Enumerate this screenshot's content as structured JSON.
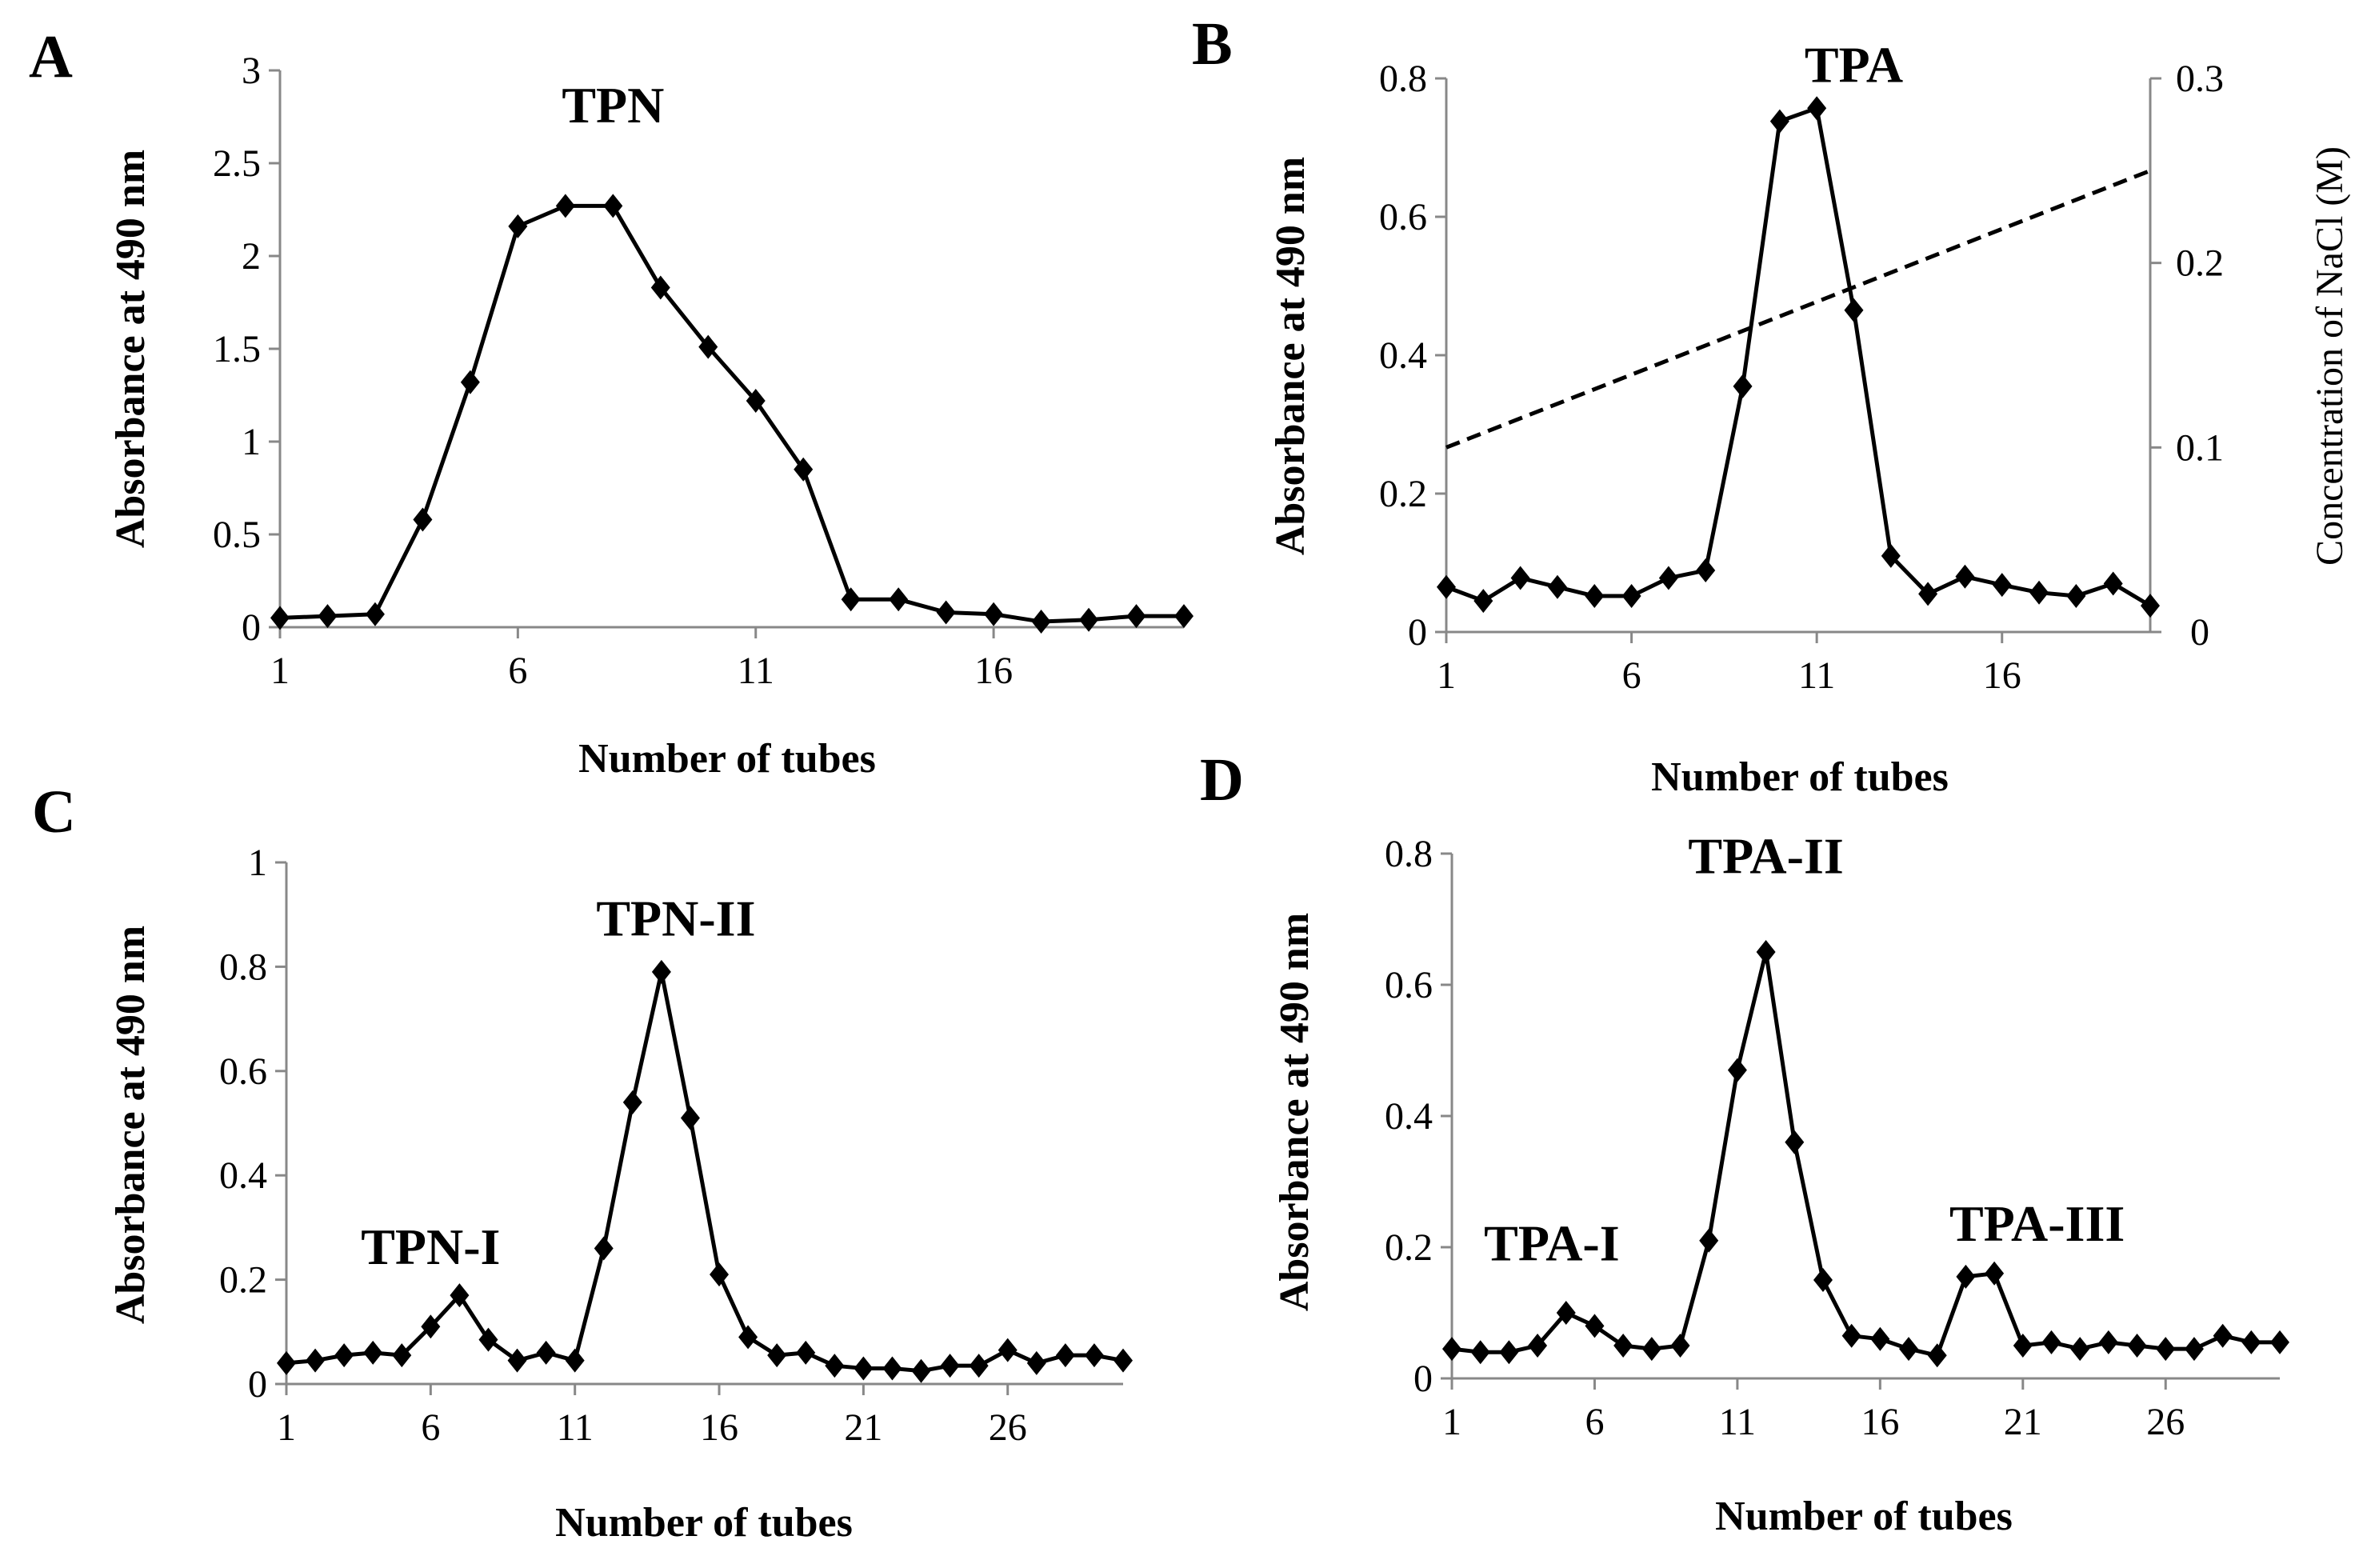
{
  "chart_data": [
    {
      "type": "line",
      "panel": "A",
      "xlabel": "Number of tubes",
      "ylabel": "Absorbance at 490 nm",
      "xlim": [
        1,
        20
      ],
      "ylim": [
        0,
        3
      ],
      "xticks": [
        "1",
        "6",
        "11",
        "16"
      ],
      "yticks": [
        "0",
        "0.5",
        "1",
        "1.5",
        "2",
        "2.5",
        "3"
      ],
      "x": [
        1,
        2,
        3,
        4,
        5,
        6,
        7,
        8,
        9,
        10,
        11,
        12,
        13,
        14,
        15,
        16,
        17,
        18,
        19,
        20
      ],
      "series": [
        {
          "name": "Absorbance",
          "values": [
            0.05,
            0.06,
            0.07,
            0.58,
            1.32,
            2.16,
            2.27,
            2.27,
            1.83,
            1.51,
            1.22,
            0.85,
            0.15,
            0.15,
            0.08,
            0.07,
            0.03,
            0.04,
            0.06,
            0.06
          ]
        }
      ],
      "annotations": [
        {
          "text": "TPN",
          "x": 8,
          "y": 2.72
        }
      ]
    },
    {
      "type": "line",
      "panel": "B",
      "xlabel": "Number of tubes",
      "ylabel": "Absorbance at 490 nm",
      "y2label": "Concentration of NaCl (M)",
      "xlim": [
        1,
        20
      ],
      "ylim": [
        0,
        0.8
      ],
      "y2lim": [
        0,
        0.3
      ],
      "xticks": [
        "1",
        "6",
        "11",
        "16"
      ],
      "yticks": [
        "0",
        "0.2",
        "0.4",
        "0.6",
        "0.8"
      ],
      "y2ticks": [
        "0",
        "0.1",
        "0.2",
        "0.3"
      ],
      "x": [
        1,
        2,
        3,
        4,
        5,
        6,
        7,
        8,
        9,
        10,
        11,
        12,
        13,
        14,
        15,
        16,
        17,
        18,
        19,
        20
      ],
      "series": [
        {
          "name": "Absorbance",
          "values": [
            0.065,
            0.045,
            0.078,
            0.065,
            0.052,
            0.052,
            0.078,
            0.089,
            0.355,
            0.738,
            0.757,
            0.465,
            0.11,
            0.055,
            0.08,
            0.068,
            0.057,
            0.052,
            0.07,
            0.038
          ]
        },
        {
          "name": "Concentration of NaCl",
          "axis": "right",
          "dashed": true,
          "x": [
            1,
            20
          ],
          "values": [
            0.1,
            0.25
          ]
        }
      ],
      "annotations": [
        {
          "text": "TPA",
          "x": 12,
          "y": 0.795
        }
      ]
    },
    {
      "type": "line",
      "panel": "C",
      "xlabel": "Number of tubes",
      "ylabel": "Absorbance at 490 nm",
      "xlim": [
        1,
        30
      ],
      "ylim": [
        0,
        1
      ],
      "xticks": [
        "1",
        "6",
        "11",
        "16",
        "21",
        "26"
      ],
      "yticks": [
        "0",
        "0.2",
        "0.4",
        "0.6",
        "0.8",
        "1"
      ],
      "x": [
        1,
        2,
        3,
        4,
        5,
        6,
        7,
        8,
        9,
        10,
        11,
        12,
        13,
        14,
        15,
        16,
        17,
        18,
        19,
        20,
        21,
        22,
        23,
        24,
        25,
        26,
        27,
        28,
        29,
        30
      ],
      "series": [
        {
          "name": "Absorbance",
          "values": [
            0.04,
            0.045,
            0.055,
            0.06,
            0.055,
            0.11,
            0.17,
            0.085,
            0.045,
            0.06,
            0.045,
            0.26,
            0.54,
            0.79,
            0.51,
            0.21,
            0.09,
            0.055,
            0.06,
            0.035,
            0.03,
            0.03,
            0.025,
            0.035,
            0.035,
            0.065,
            0.04,
            0.055,
            0.055,
            0.045
          ]
        }
      ],
      "annotations": [
        {
          "text": "TPN-I",
          "x": 6,
          "y": 0.23
        },
        {
          "text": "TPN-II",
          "x": 14.5,
          "y": 0.86
        }
      ]
    },
    {
      "type": "line",
      "panel": "D",
      "xlabel": "Number of tubes",
      "ylabel": "Absorbance at 490 nm",
      "xlim": [
        1,
        30
      ],
      "ylim": [
        0,
        0.8
      ],
      "xticks": [
        "1",
        "6",
        "11",
        "16",
        "21",
        "26"
      ],
      "yticks": [
        "0",
        "0.2",
        "0.4",
        "0.6",
        "0.8"
      ],
      "x": [
        1,
        2,
        3,
        4,
        5,
        6,
        7,
        8,
        9,
        10,
        11,
        12,
        13,
        14,
        15,
        16,
        17,
        18,
        19,
        20,
        21,
        22,
        23,
        24,
        25,
        26,
        27,
        28,
        29,
        30
      ],
      "series": [
        {
          "name": "Absorbance",
          "values": [
            0.045,
            0.04,
            0.04,
            0.05,
            0.1,
            0.08,
            0.05,
            0.045,
            0.05,
            0.21,
            0.47,
            0.65,
            0.36,
            0.15,
            0.065,
            0.06,
            0.045,
            0.035,
            0.155,
            0.16,
            0.05,
            0.055,
            0.045,
            0.055,
            0.05,
            0.045,
            0.045,
            0.065,
            0.055,
            0.055
          ]
        }
      ],
      "annotations": [
        {
          "text": "TPA-I",
          "x": 4.5,
          "y": 0.18
        },
        {
          "text": "TPA-II",
          "x": 12,
          "y": 0.77
        },
        {
          "text": "TPA-III",
          "x": 21.5,
          "y": 0.21
        }
      ]
    }
  ]
}
